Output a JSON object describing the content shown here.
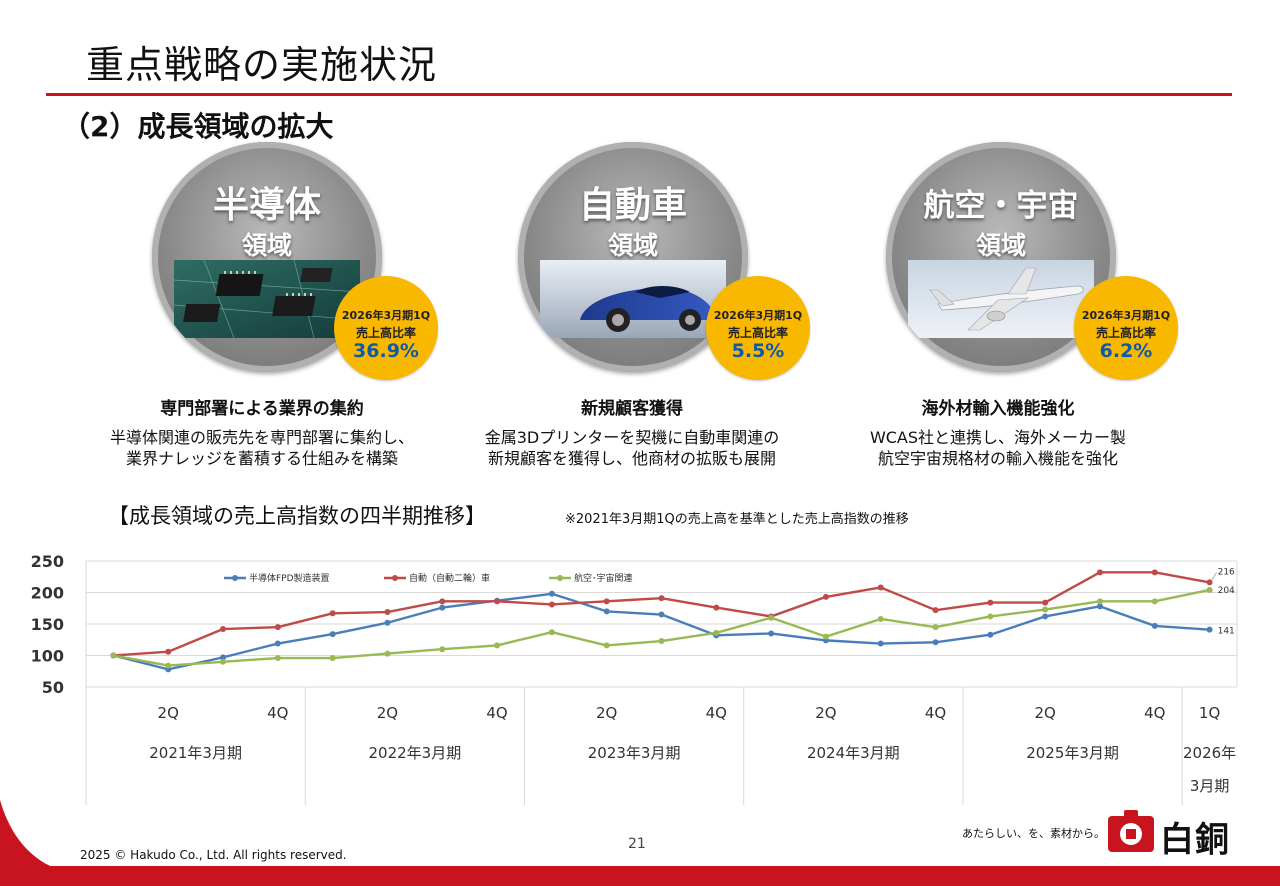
{
  "header": {
    "title": "重点戦略の実施状況",
    "section": "（2）成長領域の拡大"
  },
  "domains": [
    {
      "name": "半導体",
      "sub": "領域",
      "badge_period": "2026年3月期1Q",
      "badge_label": "売上高比率",
      "badge_value": "36.9%",
      "strategy": "専門部署による業界の集約",
      "desc_line1": "半導体関連の販売先を専門部署に集約し、",
      "desc_line2": "業界ナレッジを蓄積する仕組みを構築",
      "icon": "semiconductor-chips-photo"
    },
    {
      "name": "自動車",
      "sub": "領域",
      "badge_period": "2026年3月期1Q",
      "badge_label": "売上高比率",
      "badge_value": "5.5%",
      "strategy": "新規顧客獲得",
      "desc_line1": "金属3Dプリンターを契機に自動車関連の",
      "desc_line2": "新規顧客を獲得し、他商材の拡販も展開",
      "icon": "blue-car-photo"
    },
    {
      "name": "航空・宇宙",
      "sub": "領域",
      "badge_period": "2026年3月期1Q",
      "badge_label": "売上高比率",
      "badge_value": "6.2%",
      "strategy": "海外材輸入機能強化",
      "desc_line1": "WCAS社と連携し、海外メーカー製",
      "desc_line2": "航空宇宙規格材の輸入機能を強化",
      "icon": "airplane-photo"
    }
  ],
  "chart_heading": {
    "title": "【成長領域の売上高指数の四半期推移】",
    "note": "※2021年3月期1Qの売上高を基準とした売上高指数の推移"
  },
  "chart_data": {
    "type": "line",
    "x": [
      "2021年3月期1Q",
      "2Q",
      "3Q",
      "4Q",
      "2022年3月期1Q",
      "2Q",
      "3Q",
      "4Q",
      "2023年3月期1Q",
      "2Q",
      "3Q",
      "4Q",
      "2024年3月期1Q",
      "2Q",
      "3Q",
      "4Q",
      "2025年3月期1Q",
      "2Q",
      "3Q",
      "4Q",
      "2026年3月期1Q"
    ],
    "quarter_labels": [
      "",
      "2Q",
      "",
      "4Q",
      "",
      "2Q",
      "",
      "4Q",
      "",
      "2Q",
      "",
      "4Q",
      "",
      "2Q",
      "",
      "4Q",
      "",
      "2Q",
      "",
      "4Q",
      "1Q"
    ],
    "fiscal_years": [
      {
        "label": "2021年3月期",
        "start": 0,
        "end": 3
      },
      {
        "label": "2022年3月期",
        "start": 4,
        "end": 7
      },
      {
        "label": "2023年3月期",
        "start": 8,
        "end": 11
      },
      {
        "label": "2024年3月期",
        "start": 12,
        "end": 15
      },
      {
        "label": "2025年3月期",
        "start": 16,
        "end": 19
      },
      {
        "label": "2026年",
        "label2": "3月期",
        "start": 20,
        "end": 20
      }
    ],
    "ylim": [
      50,
      250
    ],
    "yticks": [
      50,
      100,
      150,
      200,
      250
    ],
    "series": [
      {
        "name": "半導体FPD製造装置",
        "color": "#4a7ebb",
        "values": [
          100,
          78,
          97,
          119,
          134,
          152,
          176,
          187,
          198,
          170,
          165,
          132,
          135,
          124,
          119,
          121,
          133,
          162,
          178,
          147,
          141
        ],
        "end_label": "141"
      },
      {
        "name": "自動（自動二輪）車",
        "color": "#be4b48",
        "values": [
          100,
          106,
          142,
          145,
          167,
          169,
          186,
          186,
          181,
          186,
          191,
          176,
          162,
          193,
          208,
          172,
          184,
          184,
          232,
          232,
          216
        ],
        "end_label": "216"
      },
      {
        "name": "航空･宇宙関連",
        "color": "#98b954",
        "values": [
          100,
          84,
          90,
          96,
          96,
          103,
          110,
          116,
          137,
          116,
          123,
          136,
          160,
          130,
          158,
          145,
          162,
          173,
          186,
          186,
          204
        ],
        "end_label": "204"
      }
    ],
    "legend_position": "top-left",
    "grid": true
  },
  "footer": {
    "page": "21",
    "copyright": "2025 © Hakudo Co., Ltd. All rights reserved.",
    "tagline": "あたらしい、を、素材から。",
    "logo_text": "白銅"
  },
  "colors": {
    "accent_red": "#c8141e",
    "badge_yellow": "#f9b800",
    "badge_value_blue": "#0d5aa8"
  }
}
